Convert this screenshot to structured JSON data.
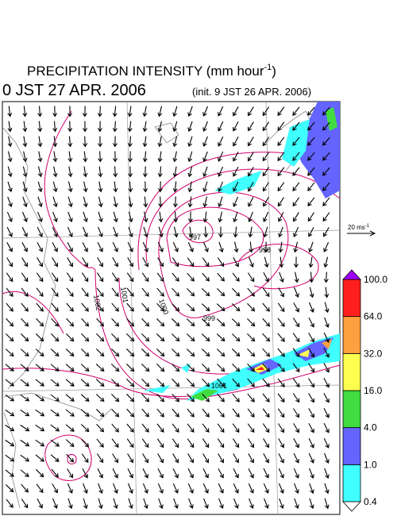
{
  "header": {
    "title": "PRECIPITATION INTENSITY (mm hour",
    "title_sup": "-1",
    "title_end": ")",
    "valid_time": "0 JST 27 APR. 2006",
    "init_time": "(init. 9 JST 26 APR. 2006)"
  },
  "map": {
    "vector_scale": {
      "label": "20 ms",
      "sup": "-1"
    },
    "contour_labels": [
      "997",
      "998",
      "999",
      "1000",
      "1001",
      "1002",
      "1001"
    ]
  },
  "colorbar": {
    "levels": [
      0.4,
      {
        "value": 1,
        "label": "1.0"
      },
      {
        "value": 4,
        "label": "4.0"
      },
      {
        "value": 16,
        "label": "16.0"
      },
      {
        "value": 32,
        "label": "32.0"
      },
      {
        "value": 64,
        "label": "64.0"
      },
      {
        "value": 100,
        "label": "100.0"
      }
    ],
    "colors": [
      "#40ffff",
      "#6464ff",
      "#40dc40",
      "#ffff50",
      "#ffa040",
      "#ff1e1e"
    ],
    "over_color": "#a000ff",
    "under_color": "#ffffff"
  }
}
